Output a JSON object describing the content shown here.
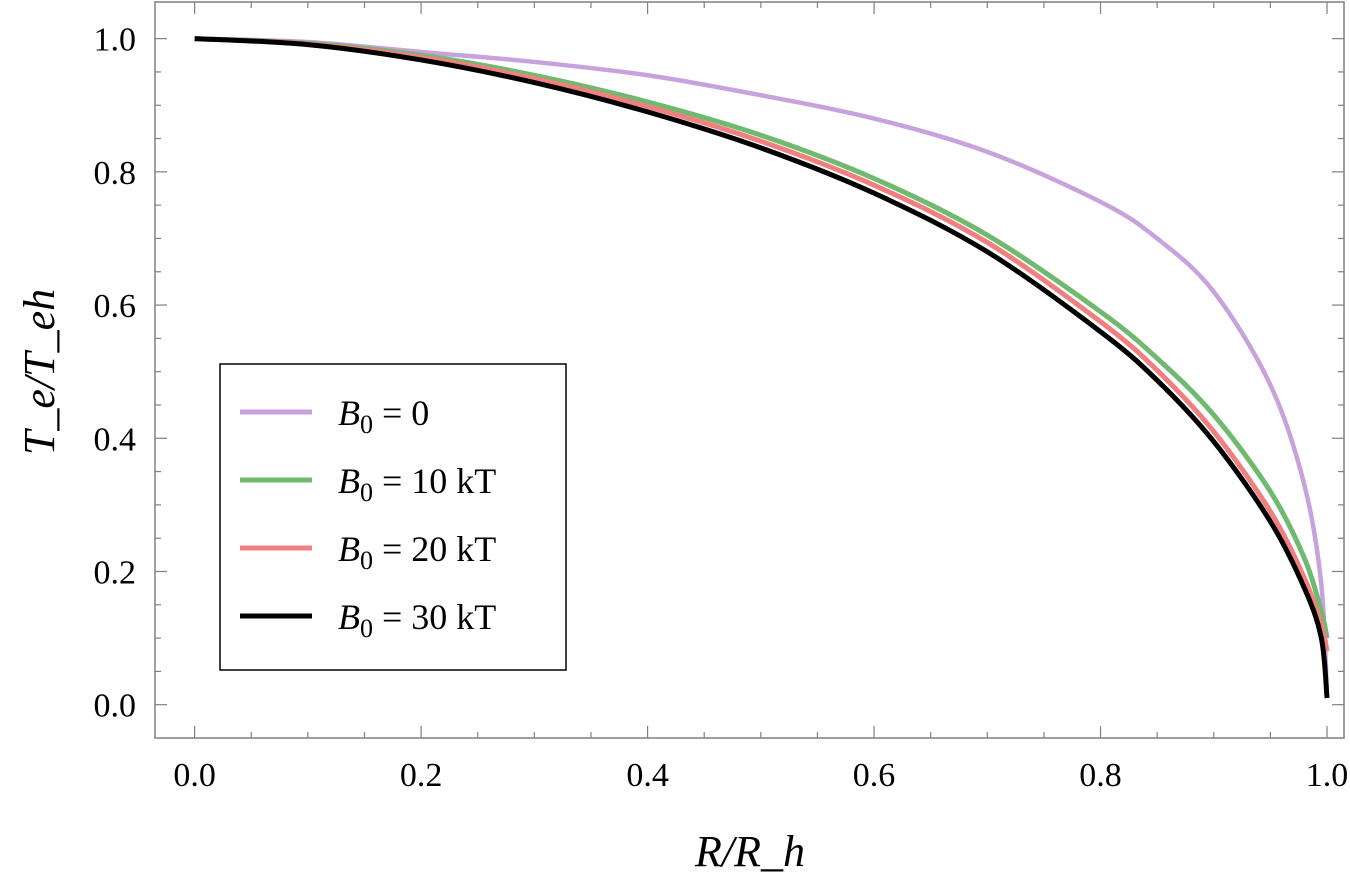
{
  "chart_data": {
    "type": "line",
    "title": "",
    "xlabel": "R/R_h",
    "ylabel": "T_e/T_eh",
    "xlim": [
      -0.035,
      1.015
    ],
    "ylim": [
      -0.05,
      1.055
    ],
    "xticks": [
      "0.0",
      "0.2",
      "0.4",
      "0.6",
      "0.8",
      "1.0"
    ],
    "yticks": [
      "0.0",
      "0.2",
      "0.4",
      "0.6",
      "0.8",
      "1.0"
    ],
    "xtick_values": [
      0.0,
      0.2,
      0.4,
      0.6,
      0.8,
      1.0
    ],
    "ytick_values": [
      0.0,
      0.2,
      0.4,
      0.6,
      0.8,
      1.0
    ],
    "legend_position": "center-left",
    "series": [
      {
        "name": "B0 = 0",
        "legend_main": "B",
        "legend_sub": "0",
        "legend_rest": " = 0",
        "color": "#c8a2dc",
        "x": [
          0,
          0.1,
          0.2,
          0.3,
          0.4,
          0.5,
          0.6,
          0.7,
          0.8,
          0.85,
          0.9,
          0.95,
          0.98,
          0.995,
          1.0
        ],
        "y": [
          1.0,
          0.995,
          0.98,
          0.965,
          0.945,
          0.915,
          0.88,
          0.83,
          0.755,
          0.7,
          0.62,
          0.48,
          0.33,
          0.18,
          0.01
        ]
      },
      {
        "name": "B0 = 10 kT",
        "legend_main": "B",
        "legend_sub": "0",
        "legend_rest": " = 10 kT",
        "color": "#6fba6f",
        "x": [
          0,
          0.1,
          0.2,
          0.3,
          0.4,
          0.5,
          0.6,
          0.7,
          0.8,
          0.85,
          0.9,
          0.95,
          0.98,
          0.995,
          1.0
        ],
        "y": [
          1.0,
          0.993,
          0.975,
          0.945,
          0.905,
          0.855,
          0.79,
          0.705,
          0.59,
          0.52,
          0.435,
          0.32,
          0.22,
          0.14,
          0.1
        ]
      },
      {
        "name": "B0 = 20 kT",
        "legend_main": "B",
        "legend_sub": "0",
        "legend_rest": " = 20 kT",
        "color": "#f08080",
        "x": [
          0,
          0.1,
          0.2,
          0.3,
          0.4,
          0.5,
          0.6,
          0.7,
          0.8,
          0.85,
          0.9,
          0.95,
          0.98,
          0.995,
          1.0
        ],
        "y": [
          1.0,
          0.992,
          0.972,
          0.94,
          0.898,
          0.846,
          0.78,
          0.694,
          0.575,
          0.502,
          0.41,
          0.29,
          0.19,
          0.12,
          0.08
        ]
      },
      {
        "name": "B0 = 30 kT",
        "legend_main": "B",
        "legend_sub": "0",
        "legend_rest": " = 30 kT",
        "color": "#000000",
        "x": [
          0,
          0.1,
          0.2,
          0.3,
          0.4,
          0.5,
          0.6,
          0.7,
          0.8,
          0.85,
          0.9,
          0.95,
          0.98,
          0.995,
          1.0
        ],
        "y": [
          1.0,
          0.991,
          0.968,
          0.934,
          0.89,
          0.836,
          0.768,
          0.68,
          0.56,
          0.487,
          0.395,
          0.275,
          0.175,
          0.1,
          0.01
        ]
      }
    ]
  }
}
